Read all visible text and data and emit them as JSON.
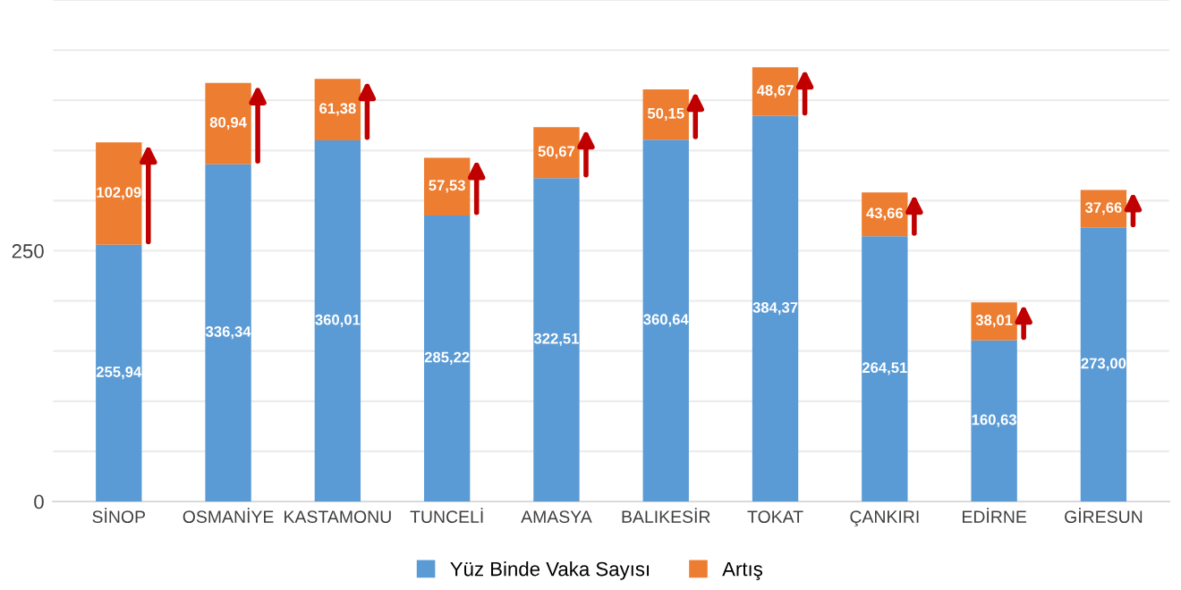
{
  "chart_data": {
    "type": "bar",
    "stacked": true,
    "categories": [
      "SİNOP",
      "OSMANİYE",
      "KASTAMONU",
      "TUNCELİ",
      "AMASYA",
      "BALIKESİR",
      "TOKAT",
      "ÇANKIRI",
      "EDİRNE",
      "GİRESUN"
    ],
    "series": [
      {
        "name": "Yüz Binde Vaka Sayısı",
        "color": "#5b9bd5",
        "values": [
          255.94,
          336.34,
          360.01,
          285.22,
          322.51,
          360.64,
          384.37,
          264.51,
          160.63,
          273.0
        ],
        "value_labels": [
          "255,94",
          "336,34",
          "360,01",
          "285,22",
          "322,51",
          "360,64",
          "384,37",
          "264,51",
          "160,63",
          "273,00"
        ]
      },
      {
        "name": "Artış",
        "color": "#ed7d31",
        "values": [
          102.09,
          80.94,
          61.38,
          57.53,
          50.67,
          50.15,
          48.67,
          43.66,
          38.01,
          37.66
        ],
        "value_labels": [
          "102,09",
          "80,94",
          "61,38",
          "57,53",
          "50,67",
          "50,15",
          "48,67",
          "43,66",
          "38,01",
          "37,66"
        ]
      }
    ],
    "ylim": [
      0,
      500
    ],
    "yticks": [
      0,
      {
        "value": 50,
        "label": null
      },
      {
        "value": 100,
        "label": null
      },
      {
        "value": 150,
        "label": null
      },
      {
        "value": 200,
        "label": null
      },
      250,
      {
        "value": 300,
        "label": null
      },
      {
        "value": 350,
        "label": null
      },
      {
        "value": 400,
        "label": null
      },
      {
        "value": 450,
        "label": null
      },
      {
        "value": 500,
        "label": null
      }
    ],
    "grid": "y",
    "legend": "bottom"
  }
}
